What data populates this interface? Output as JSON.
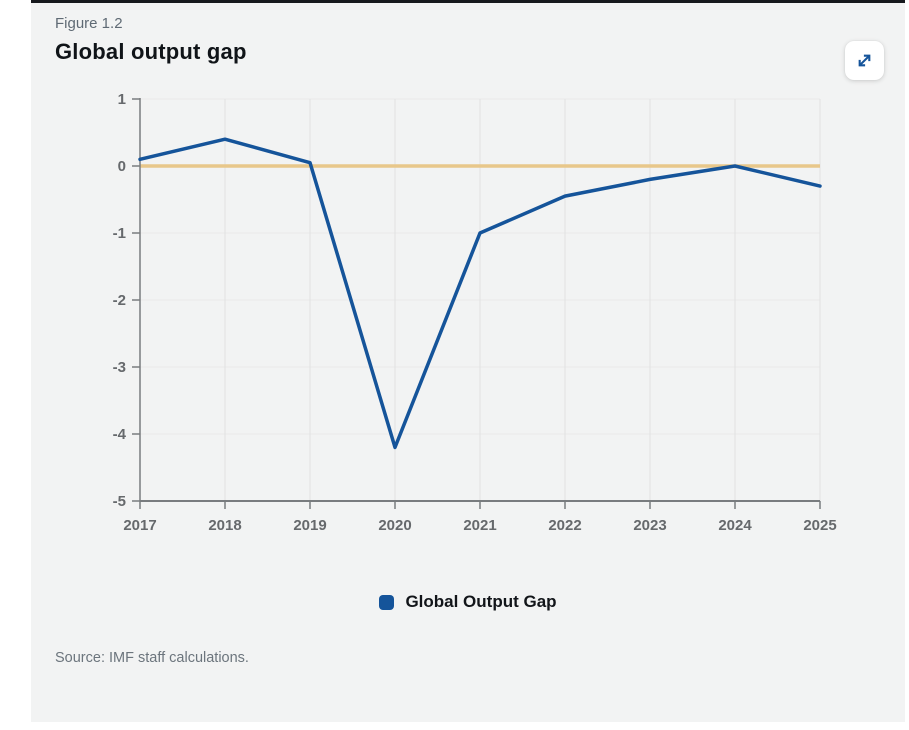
{
  "header": {
    "figure_label": "Figure 1.2",
    "title": "Global output gap",
    "expand_icon": "expand-diagonal-arrows"
  },
  "legend": {
    "label": "Global Output Gap"
  },
  "footer": {
    "source": "Source: IMF staff calculations."
  },
  "colors": {
    "line": "#15549a",
    "zero_line": "#e8c78a",
    "grid_vertical": "#e1e2e2",
    "grid_horizontal": "#e9eaea",
    "axis": "#797c7f",
    "tick_text": "#66696c",
    "card_background": "#f2f3f3",
    "top_border": "#16191d",
    "icon_blue": "#15549a"
  },
  "chart_data": {
    "type": "line",
    "title": "Global output gap",
    "x": [
      2017,
      2018,
      2019,
      2020,
      2021,
      2022,
      2023,
      2024,
      2025
    ],
    "series": [
      {
        "name": "Global Output Gap",
        "values": [
          0.1,
          0.4,
          0.05,
          -4.2,
          -1.0,
          -0.45,
          -0.2,
          0.0,
          -0.3
        ]
      }
    ],
    "ylim": [
      -5,
      1
    ],
    "yticks": [
      1,
      0,
      -1,
      -2,
      -3,
      -4,
      -5
    ],
    "zero_line": true,
    "grid": true,
    "legend_position": "bottom",
    "xlabel": "",
    "ylabel": ""
  }
}
